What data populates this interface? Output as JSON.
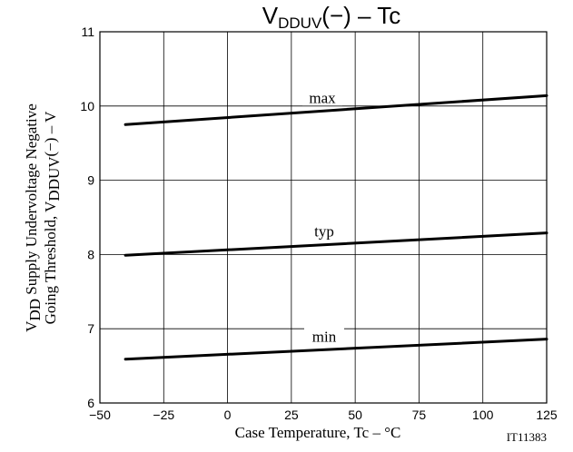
{
  "chart_data": {
    "type": "line",
    "title": "VDDUV(−) – Tc",
    "title_parts": {
      "main": "V",
      "sub": "DDUV",
      "rest": "(−)  –  Tc"
    },
    "xlabel": "Case Temperature, Tc  –  °C",
    "ylabel_line1": "V DD Supply Undervoltage Negative",
    "ylabel_line1_parts": {
      "main": "V",
      "sub": "DD",
      "rest": " Supply Undervoltage Negative"
    },
    "ylabel_line2": "Going Threshold, VDDUV(−)  –  V",
    "ylabel_line2_parts": {
      "main": "Going Threshold, V",
      "sub": "DDUV",
      "rest": "(−)  –  V"
    },
    "xlim": [
      -50,
      125
    ],
    "ylim": [
      6,
      11
    ],
    "x_ticks": [
      -50,
      -25,
      0,
      25,
      50,
      75,
      100,
      125
    ],
    "x_tick_labels": [
      "−50",
      "−25",
      "0",
      "25",
      "50",
      "75",
      "100",
      "125"
    ],
    "y_ticks": [
      6,
      7,
      8,
      9,
      10,
      11
    ],
    "y_tick_labels": [
      "6",
      "7",
      "8",
      "9",
      "10",
      "11"
    ],
    "grid": true,
    "series": [
      {
        "name": "max",
        "x": [
          -40,
          125
        ],
        "y": [
          9.75,
          10.14
        ]
      },
      {
        "name": "typ",
        "x": [
          -40,
          125
        ],
        "y": [
          7.99,
          8.29
        ]
      },
      {
        "name": "min",
        "x": [
          -40,
          125
        ],
        "y": [
          6.59,
          6.86
        ]
      }
    ],
    "figure_id": "IT11383"
  }
}
